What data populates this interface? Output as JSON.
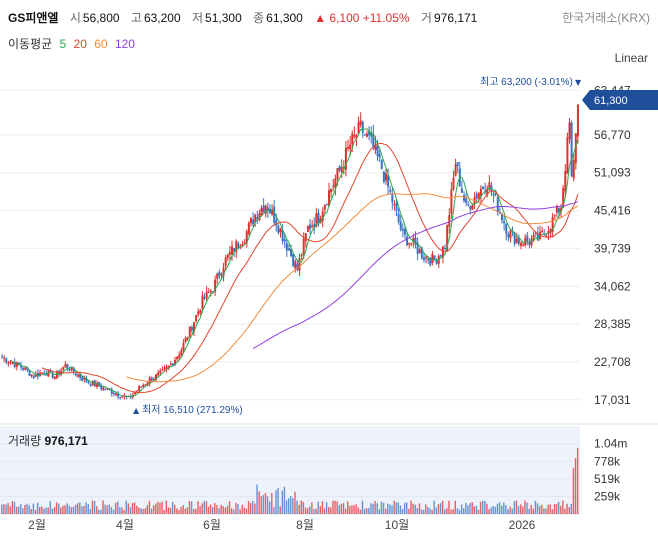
{
  "header": {
    "ticker": "GS피앤엘",
    "open_label": "시",
    "open": "56,800",
    "high_label": "고",
    "high": "63,200",
    "low_label": "저",
    "low": "51,300",
    "close_label": "종",
    "close": "61,300",
    "change": "▲ 6,100 +11.05%",
    "vol_label": "거",
    "volume": "976,171",
    "exchange": "한국거래소(KRX)"
  },
  "ma_legend": {
    "label": "이동평균",
    "p5": "5",
    "p20": "20",
    "p60": "60",
    "p120": "120"
  },
  "scale_mode": "Linear",
  "colors": {
    "up": "#e03030",
    "down": "#3a72c4",
    "ma5": "#2ba84a",
    "ma20": "#e0472f",
    "ma60": "#f08c3c",
    "ma120": "#8f3fe0",
    "price_tag": "#1f4e9c",
    "volume_bg": "#eef2fb"
  },
  "annotations": {
    "high_marker": "최고 63,200 (-3.01%)",
    "low_marker": "최저 16,510 (271.29%)",
    "last_price": "61,300"
  },
  "volume_panel": {
    "title": "거래량",
    "value": "976,171"
  },
  "chart_data": {
    "type": "candlestick",
    "price_axis": {
      "ticks": [
        "63,447",
        "56,770",
        "51,093",
        "45,416",
        "39,739",
        "34,062",
        "28,385",
        "22,708",
        "17,031"
      ],
      "ylim": [
        14000,
        66500
      ]
    },
    "x_axis": {
      "ticks": [
        "2월",
        "4월",
        "6월",
        "8월",
        "10월",
        "2026"
      ]
    },
    "volume_axis": {
      "ticks": [
        "1.04m",
        "778k",
        "519k",
        "259k"
      ],
      "ylim": [
        0,
        1300000
      ]
    },
    "series": [
      {
        "name": "price",
        "values_approx_weekly_close": [
          23400,
          22600,
          21800,
          20600,
          21300,
          20500,
          22200,
          21000,
          19800,
          19200,
          18500,
          17900,
          17200,
          18800,
          20100,
          20900,
          22300,
          24600,
          28100,
          31900,
          33800,
          37500,
          39800,
          41600,
          44800,
          46500,
          43900,
          40200,
          36600,
          42800,
          44500,
          48200,
          51400,
          55300,
          57800,
          55400,
          51800,
          46900,
          41600,
          40300,
          38600,
          37900,
          40200,
          52600,
          45700,
          47900,
          49800,
          46100,
          42200,
          40900,
          40800,
          41300,
          43400,
          46200,
          61300
        ]
      }
    ]
  }
}
